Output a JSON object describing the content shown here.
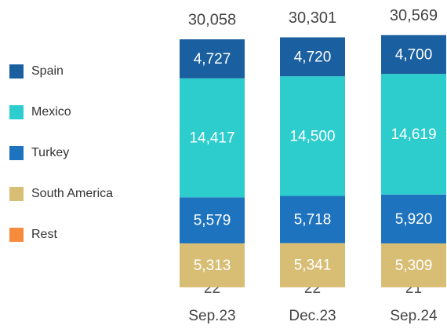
{
  "chart_data": {
    "type": "stacked_bar",
    "categories": [
      "Sep.23",
      "Dec.23",
      "Sep.24"
    ],
    "series": [
      {
        "name": "Spain",
        "color": "#1a5fa0",
        "values": [
          4727,
          4720,
          4700
        ],
        "value_labels": [
          "4,727",
          "4,720",
          "4,700"
        ]
      },
      {
        "name": "Mexico",
        "color": "#2dcccd",
        "values": [
          14417,
          14500,
          14619
        ],
        "value_labels": [
          "14,417",
          "14,500",
          "14,619"
        ]
      },
      {
        "name": "Turkey",
        "color": "#1e73be",
        "values": [
          5579,
          5718,
          5920
        ],
        "value_labels": [
          "5,579",
          "5,718",
          "5,920"
        ]
      },
      {
        "name": "South America",
        "color": "#d8be75",
        "values": [
          5313,
          5341,
          5309
        ],
        "value_labels": [
          "5,313",
          "5,341",
          "5,309"
        ]
      },
      {
        "name": "Rest",
        "color": "#f78b3d",
        "values": [
          22,
          22,
          21
        ]
      }
    ],
    "totals": [
      30058,
      30301,
      30569
    ],
    "total_labels": [
      "30,058",
      "30,301",
      "30,569"
    ]
  }
}
